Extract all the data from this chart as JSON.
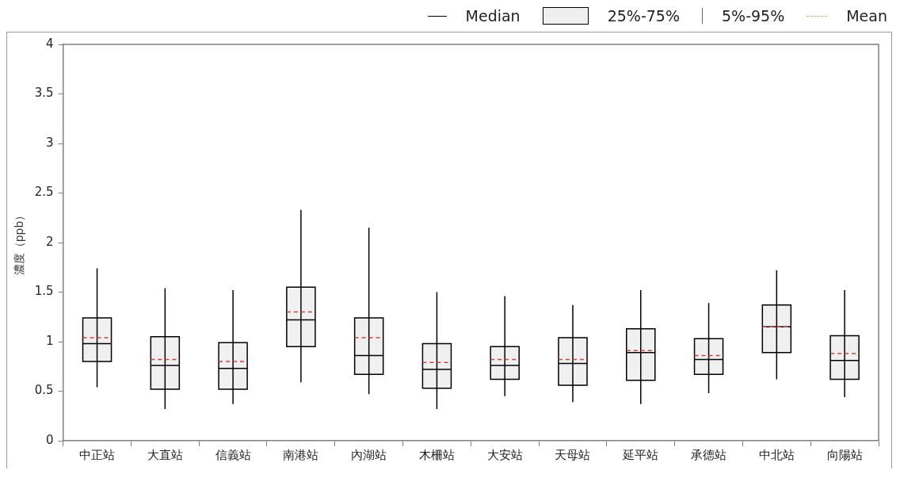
{
  "chart_data": {
    "type": "box",
    "ylabel": "濃度（ppb）",
    "categories": [
      "中正站",
      "大直站",
      "信義站",
      "南港站",
      "內湖站",
      "木柵站",
      "大安站",
      "天母站",
      "延平站",
      "承德站",
      "中北站",
      "向陽站"
    ],
    "series": [
      {
        "color": "#f0f0f0",
        "boxes": [
          {
            "low": 0.54,
            "q1": 0.8,
            "median": 0.98,
            "q3": 1.24,
            "high": 1.74,
            "mean": 1.04
          },
          {
            "low": 0.32,
            "q1": 0.52,
            "median": 0.76,
            "q3": 1.05,
            "high": 1.54,
            "mean": 0.82
          },
          {
            "low": 0.37,
            "q1": 0.52,
            "median": 0.73,
            "q3": 0.99,
            "high": 1.52,
            "mean": 0.8
          },
          {
            "low": 0.59,
            "q1": 0.95,
            "median": 1.22,
            "q3": 1.55,
            "high": 2.33,
            "mean": 1.3
          },
          {
            "low": 0.47,
            "q1": 0.67,
            "median": 0.86,
            "q3": 1.24,
            "high": 2.15,
            "mean": 1.04
          },
          {
            "low": 0.32,
            "q1": 0.53,
            "median": 0.72,
            "q3": 0.98,
            "high": 1.5,
            "mean": 0.79
          },
          {
            "low": 0.45,
            "q1": 0.62,
            "median": 0.76,
            "q3": 0.95,
            "high": 1.46,
            "mean": 0.82
          },
          {
            "low": 0.39,
            "q1": 0.56,
            "median": 0.78,
            "q3": 1.04,
            "high": 1.37,
            "mean": 0.82
          },
          {
            "low": 0.37,
            "q1": 0.61,
            "median": 0.89,
            "q3": 1.13,
            "high": 1.52,
            "mean": 0.91
          },
          {
            "low": 0.48,
            "q1": 0.67,
            "median": 0.82,
            "q3": 1.03,
            "high": 1.39,
            "mean": 0.86
          },
          {
            "low": 0.62,
            "q1": 0.89,
            "median": 1.15,
            "q3": 1.37,
            "high": 1.72,
            "mean": 1.15
          },
          {
            "low": 0.44,
            "q1": 0.62,
            "median": 0.81,
            "q3": 1.06,
            "high": 1.52,
            "mean": 0.88
          }
        ]
      }
    ],
    "ylim": [
      0,
      4
    ],
    "yticks": [
      0,
      0.5,
      1,
      1.5,
      2,
      2.5,
      3,
      3.5,
      4
    ],
    "annotations": [
      "Median",
      "25%-75%",
      "5%-95%",
      "Mean"
    ]
  }
}
